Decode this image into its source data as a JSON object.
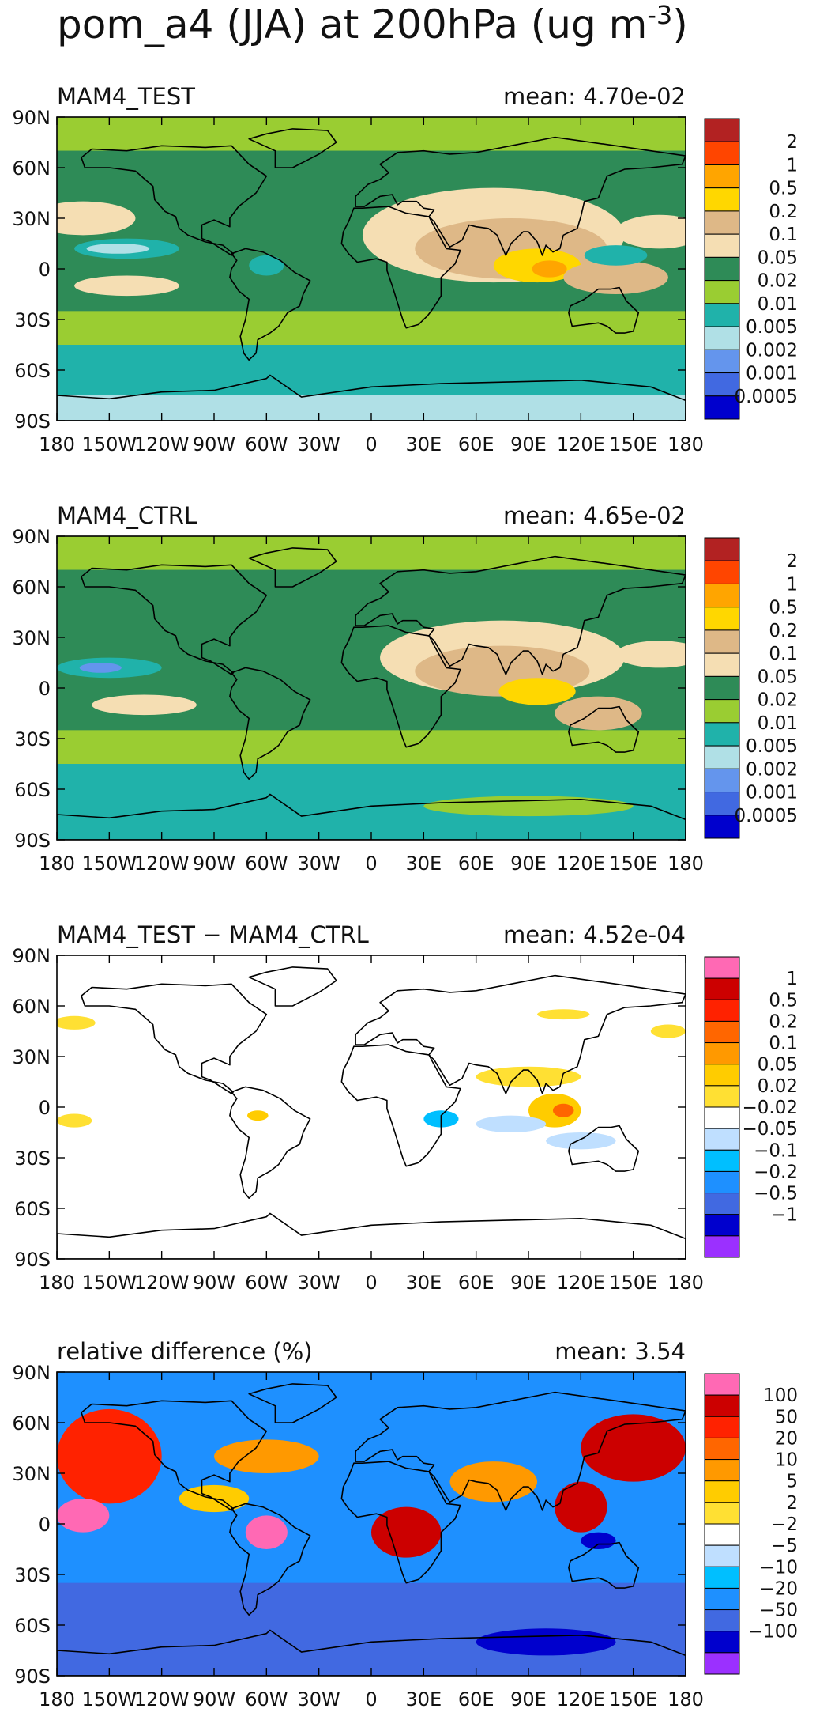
{
  "figure": {
    "title": "pom_a4 (JJA) at 200hPa (ug m",
    "title_sup": "-3",
    "title_close": ")"
  },
  "chart_data": [
    {
      "type": "heatmap",
      "title": "MAM4_TEST",
      "mean_label": "mean:  4.70e-02",
      "x": [
        "180",
        "150W",
        "120W",
        "90W",
        "60W",
        "30W",
        "0",
        "30E",
        "60E",
        "90E",
        "120E",
        "150E",
        "180"
      ],
      "y": [
        "90N",
        "60N",
        "30N",
        "0",
        "30S",
        "60S",
        "90S"
      ],
      "xlim": [
        -180,
        180
      ],
      "ylim": [
        -90,
        90
      ],
      "colorbar": {
        "labels": [
          "2",
          "1",
          "0.5",
          "0.2",
          "0.1",
          "0.05",
          "0.02",
          "0.01",
          "0.005",
          "0.002",
          "0.001",
          "0.0005"
        ],
        "colors": [
          "#b22222",
          "#ff4500",
          "#ffa500",
          "#ffd700",
          "#deb887",
          "#f5deb3",
          "#2e8b57",
          "#9acd32",
          "#20b2aa",
          "#b0e0e6",
          "#6495ed",
          "#4169e1",
          "#0000cd"
        ]
      },
      "field": {
        "background": "#2e8b57",
        "regions": [
          {
            "band": [
              90,
              70
            ],
            "color": "#9acd32"
          },
          {
            "band": [
              70,
              45
            ],
            "color": "#2e8b57"
          },
          {
            "band": [
              -25,
              -45
            ],
            "color": "#9acd32"
          },
          {
            "band": [
              -45,
              -75
            ],
            "color": "#20b2aa"
          },
          {
            "band": [
              -75,
              -90
            ],
            "color": "#b0e0e6"
          }
        ],
        "blobs": [
          {
            "lon": 70,
            "lat": 20,
            "rlon": 75,
            "rlat": 28,
            "color": "#f5deb3"
          },
          {
            "lon": 80,
            "lat": 12,
            "rlon": 55,
            "rlat": 18,
            "color": "#deb887"
          },
          {
            "lon": 95,
            "lat": 2,
            "rlon": 25,
            "rlat": 10,
            "color": "#ffd700"
          },
          {
            "lon": 102,
            "lat": 0,
            "rlon": 10,
            "rlat": 5,
            "color": "#ffa500"
          },
          {
            "lon": -165,
            "lat": 30,
            "rlon": 30,
            "rlat": 10,
            "color": "#f5deb3"
          },
          {
            "lon": 165,
            "lat": 22,
            "rlon": 25,
            "rlat": 10,
            "color": "#f5deb3"
          },
          {
            "lon": -140,
            "lat": 12,
            "rlon": 30,
            "rlat": 6,
            "color": "#20b2aa"
          },
          {
            "lon": -145,
            "lat": 12,
            "rlon": 18,
            "rlat": 3,
            "color": "#b0e0e6"
          },
          {
            "lon": -60,
            "lat": 2,
            "rlon": 10,
            "rlat": 6,
            "color": "#20b2aa"
          },
          {
            "lon": -140,
            "lat": -10,
            "rlon": 30,
            "rlat": 6,
            "color": "#f5deb3"
          },
          {
            "lon": 140,
            "lat": -5,
            "rlon": 30,
            "rlat": 10,
            "color": "#deb887"
          },
          {
            "lon": 140,
            "lat": 8,
            "rlon": 18,
            "rlat": 6,
            "color": "#20b2aa"
          }
        ]
      }
    },
    {
      "type": "heatmap",
      "title": "MAM4_CTRL",
      "mean_label": "mean:  4.65e-02",
      "x": [
        "180",
        "150W",
        "120W",
        "90W",
        "60W",
        "30W",
        "0",
        "30E",
        "60E",
        "90E",
        "120E",
        "150E",
        "180"
      ],
      "y": [
        "90N",
        "60N",
        "30N",
        "0",
        "30S",
        "60S",
        "90S"
      ],
      "xlim": [
        -180,
        180
      ],
      "ylim": [
        -90,
        90
      ],
      "colorbar": {
        "labels": [
          "2",
          "1",
          "0.5",
          "0.2",
          "0.1",
          "0.05",
          "0.02",
          "0.01",
          "0.005",
          "0.002",
          "0.001",
          "0.0005"
        ],
        "colors": [
          "#b22222",
          "#ff4500",
          "#ffa500",
          "#ffd700",
          "#deb887",
          "#f5deb3",
          "#2e8b57",
          "#9acd32",
          "#20b2aa",
          "#b0e0e6",
          "#6495ed",
          "#4169e1",
          "#0000cd"
        ]
      },
      "field": {
        "background": "#2e8b57",
        "regions": [
          {
            "band": [
              90,
              70
            ],
            "color": "#9acd32"
          },
          {
            "band": [
              70,
              45
            ],
            "color": "#2e8b57"
          },
          {
            "band": [
              -25,
              -45
            ],
            "color": "#9acd32"
          },
          {
            "band": [
              -45,
              -75
            ],
            "color": "#20b2aa"
          },
          {
            "band": [
              -75,
              -90
            ],
            "color": "#20b2aa"
          }
        ],
        "blobs": [
          {
            "lon": 75,
            "lat": 18,
            "rlon": 70,
            "rlat": 22,
            "color": "#f5deb3"
          },
          {
            "lon": 75,
            "lat": 10,
            "rlon": 50,
            "rlat": 15,
            "color": "#deb887"
          },
          {
            "lon": 95,
            "lat": -2,
            "rlon": 22,
            "rlat": 8,
            "color": "#ffd700"
          },
          {
            "lon": -150,
            "lat": 12,
            "rlon": 30,
            "rlat": 6,
            "color": "#20b2aa"
          },
          {
            "lon": -155,
            "lat": 12,
            "rlon": 12,
            "rlat": 3,
            "color": "#6495ed"
          },
          {
            "lon": -130,
            "lat": -10,
            "rlon": 30,
            "rlat": 6,
            "color": "#f5deb3"
          },
          {
            "lon": 165,
            "lat": 20,
            "rlon": 25,
            "rlat": 8,
            "color": "#f5deb3"
          },
          {
            "lon": 130,
            "lat": -15,
            "rlon": 25,
            "rlat": 10,
            "color": "#deb887"
          },
          {
            "lon": 90,
            "lat": -70,
            "rlon": 60,
            "rlat": 6,
            "color": "#9acd32"
          }
        ]
      }
    },
    {
      "type": "heatmap",
      "title": "MAM4_TEST − MAM4_CTRL",
      "mean_label": "mean:  4.52e-04",
      "x": [
        "180",
        "150W",
        "120W",
        "90W",
        "60W",
        "30W",
        "0",
        "30E",
        "60E",
        "90E",
        "120E",
        "150E",
        "180"
      ],
      "y": [
        "90N",
        "60N",
        "30N",
        "0",
        "30S",
        "60S",
        "90S"
      ],
      "xlim": [
        -180,
        180
      ],
      "ylim": [
        -90,
        90
      ],
      "colorbar": {
        "labels": [
          "1",
          "0.5",
          "0.2",
          "0.1",
          "0.05",
          "0.02",
          "−0.02",
          "−0.05",
          "−0.1",
          "−0.2",
          "−0.5",
          "−1"
        ],
        "colors": [
          "#ff69b4",
          "#cc0000",
          "#ff2200",
          "#ff6600",
          "#ff9900",
          "#ffcc00",
          "#ffe033",
          "#ffffff",
          "#bfdfff",
          "#00bfff",
          "#1e90ff",
          "#4169e1",
          "#0000cd",
          "#9b30ff"
        ]
      },
      "field": {
        "background": "#ffffff",
        "regions": [],
        "blobs": [
          {
            "lon": 90,
            "lat": 18,
            "rlon": 30,
            "rlat": 6,
            "color": "#ffe033"
          },
          {
            "lon": 105,
            "lat": -2,
            "rlon": 15,
            "rlat": 10,
            "color": "#ffcc00"
          },
          {
            "lon": 110,
            "lat": -2,
            "rlon": 6,
            "rlat": 4,
            "color": "#ff6600"
          },
          {
            "lon": 80,
            "lat": -10,
            "rlon": 20,
            "rlat": 5,
            "color": "#bfdfff"
          },
          {
            "lon": 40,
            "lat": -7,
            "rlon": 10,
            "rlat": 5,
            "color": "#00bfff"
          },
          {
            "lon": 120,
            "lat": -20,
            "rlon": 20,
            "rlat": 5,
            "color": "#bfdfff"
          },
          {
            "lon": -170,
            "lat": 50,
            "rlon": 12,
            "rlat": 4,
            "color": "#ffe033"
          },
          {
            "lon": 170,
            "lat": 45,
            "rlon": 10,
            "rlat": 4,
            "color": "#ffe033"
          },
          {
            "lon": 110,
            "lat": 55,
            "rlon": 15,
            "rlat": 3,
            "color": "#ffe033"
          },
          {
            "lon": -65,
            "lat": -5,
            "rlon": 6,
            "rlat": 3,
            "color": "#ffcc00"
          },
          {
            "lon": -170,
            "lat": -8,
            "rlon": 10,
            "rlat": 4,
            "color": "#ffe033"
          }
        ]
      }
    },
    {
      "type": "heatmap",
      "title": "relative difference (%)",
      "mean_label": "mean:   3.54",
      "x": [
        "180",
        "150W",
        "120W",
        "90W",
        "60W",
        "30W",
        "0",
        "30E",
        "60E",
        "90E",
        "120E",
        "150E",
        "180"
      ],
      "y": [
        "90N",
        "60N",
        "30N",
        "0",
        "30S",
        "60S",
        "90S"
      ],
      "xlim": [
        -180,
        180
      ],
      "ylim": [
        -90,
        90
      ],
      "colorbar": {
        "labels": [
          "100",
          "50",
          "20",
          "10",
          "5",
          "2",
          "−2",
          "−5",
          "−10",
          "−20",
          "−50",
          "−100"
        ],
        "colors": [
          "#ff69b4",
          "#cc0000",
          "#ff2200",
          "#ff6600",
          "#ff9900",
          "#ffcc00",
          "#ffe033",
          "#ffffff",
          "#bfdfff",
          "#00bfff",
          "#1e90ff",
          "#4169e1",
          "#0000cd",
          "#9b30ff"
        ]
      },
      "field": {
        "background": "#1e90ff",
        "regions": [
          {
            "band": [
              -35,
              -90
            ],
            "color": "#4169e1"
          }
        ],
        "blobs": [
          {
            "lon": -150,
            "lat": 40,
            "rlon": 30,
            "rlat": 28,
            "color": "#ff2200"
          },
          {
            "lon": -165,
            "lat": 5,
            "rlon": 15,
            "rlat": 10,
            "color": "#ff69b4"
          },
          {
            "lon": 150,
            "lat": 45,
            "rlon": 30,
            "rlat": 20,
            "color": "#cc0000"
          },
          {
            "lon": 120,
            "lat": 10,
            "rlon": 15,
            "rlat": 15,
            "color": "#cc0000"
          },
          {
            "lon": 70,
            "lat": 25,
            "rlon": 25,
            "rlat": 12,
            "color": "#ff9900"
          },
          {
            "lon": 20,
            "lat": -5,
            "rlon": 20,
            "rlat": 15,
            "color": "#cc0000"
          },
          {
            "lon": -60,
            "lat": -5,
            "rlon": 12,
            "rlat": 10,
            "color": "#ff69b4"
          },
          {
            "lon": 130,
            "lat": -10,
            "rlon": 10,
            "rlat": 5,
            "color": "#0000cd"
          },
          {
            "lon": 100,
            "lat": -70,
            "rlon": 40,
            "rlat": 8,
            "color": "#0000cd"
          },
          {
            "lon": -60,
            "lat": 40,
            "rlon": 30,
            "rlat": 10,
            "color": "#ff9900"
          },
          {
            "lon": -90,
            "lat": 15,
            "rlon": 20,
            "rlat": 8,
            "color": "#ffcc00"
          }
        ]
      }
    }
  ]
}
